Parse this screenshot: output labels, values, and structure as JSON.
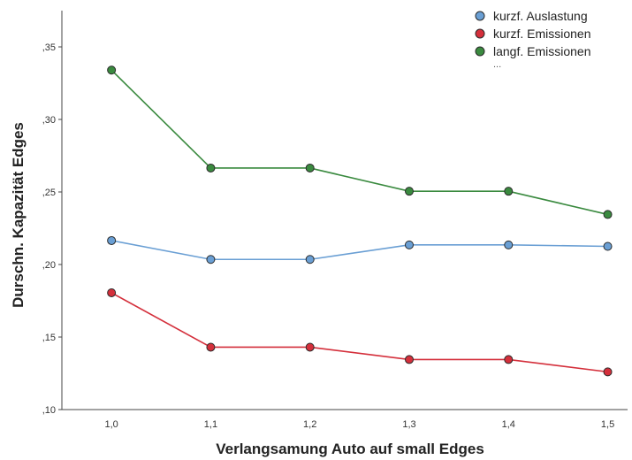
{
  "chart_data": {
    "type": "line",
    "xlabel": "Verlangsamung Auto auf small Edges",
    "ylabel": "Durschn. Kapazität Edges",
    "categories": [
      "1,0",
      "1,1",
      "1,2",
      "1,3",
      "1,4",
      "1,5"
    ],
    "x": [
      1.0,
      1.1,
      1.2,
      1.3,
      1.4,
      1.5
    ],
    "xlim": [
      0.95,
      1.52
    ],
    "ylim": [
      0.1,
      0.375
    ],
    "yticks": [
      0.1,
      0.15,
      0.2,
      0.25,
      0.3,
      0.35
    ],
    "ytick_labels": [
      ",10",
      ",15",
      ",20",
      ",25",
      ",30",
      ",35"
    ],
    "grid": false,
    "legend_position": "top-right",
    "legend_more": "...",
    "series": [
      {
        "name": "kurzf. Auslastung",
        "color": "#6a9fd4",
        "values": [
          0.2165,
          0.2035,
          0.2035,
          0.2135,
          0.2135,
          0.2125
        ]
      },
      {
        "name": "kurzf. Emissionen",
        "color": "#d42f3b",
        "values": [
          0.1805,
          0.143,
          0.143,
          0.1345,
          0.1345,
          0.126
        ]
      },
      {
        "name": "langf. Emissionen",
        "color": "#3a8a3f",
        "values": [
          0.334,
          0.2665,
          0.2665,
          0.2505,
          0.2505,
          0.2345
        ]
      }
    ]
  }
}
